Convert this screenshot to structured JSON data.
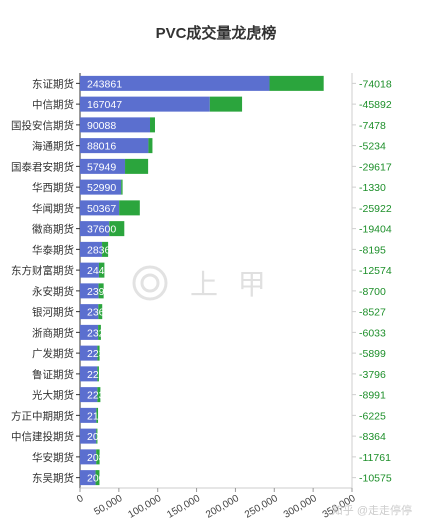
{
  "chart_data": {
    "type": "bar",
    "orientation": "horizontal",
    "stacked": true,
    "title": "PVC成交量龙虎榜",
    "categories": [
      "东证期货",
      "中信期货",
      "国投安信期货",
      "海通期货",
      "国泰君安期货",
      "华西期货",
      "华闻期货",
      "徽商期货",
      "华泰期货",
      "东方财富期货",
      "永安期货",
      "银河期货",
      "浙商期货",
      "广发期货",
      "鲁证期货",
      "光大期货",
      "方正中期期货",
      "中信建投期货",
      "华安期货",
      "东吴期货"
    ],
    "series": [
      {
        "values": [
          243861,
          167047,
          90088,
          88016,
          57949,
          52990,
          50367,
          37600,
          28365,
          24405,
          23919,
          23605,
          23294,
          22396,
          22323,
          22317,
          21027,
          20923,
          20806,
          20037
        ],
        "color": "#5b6fcf"
      },
      {
        "values": [
          69700,
          41500,
          6400,
          5200,
          29700,
          1800,
          26600,
          19400,
          7800,
          7000,
          6500,
          5000,
          3600,
          2800,
          2000,
          3900,
          2200,
          1500,
          4400,
          5000
        ],
        "color": "#2ba53d"
      }
    ],
    "net_change": [
      "-74018",
      "-45892",
      "-7478",
      "-5234",
      "-29617",
      "-1330",
      "-25922",
      "-19404",
      "-8195",
      "-12574",
      "-8700",
      "-8527",
      "-6033",
      "-5899",
      "-3796",
      "-8991",
      "-6225",
      "-8364",
      "-11761",
      "-10575"
    ],
    "xlim": [
      0,
      350000
    ],
    "x_ticks": [
      "0",
      "50,000",
      "100,000",
      "150,000",
      "200,000",
      "250,000",
      "300,000",
      "350,000"
    ],
    "grid": false,
    "legend": "none"
  },
  "watermark": "上 甲",
  "credit": "知乎 @走走停停"
}
